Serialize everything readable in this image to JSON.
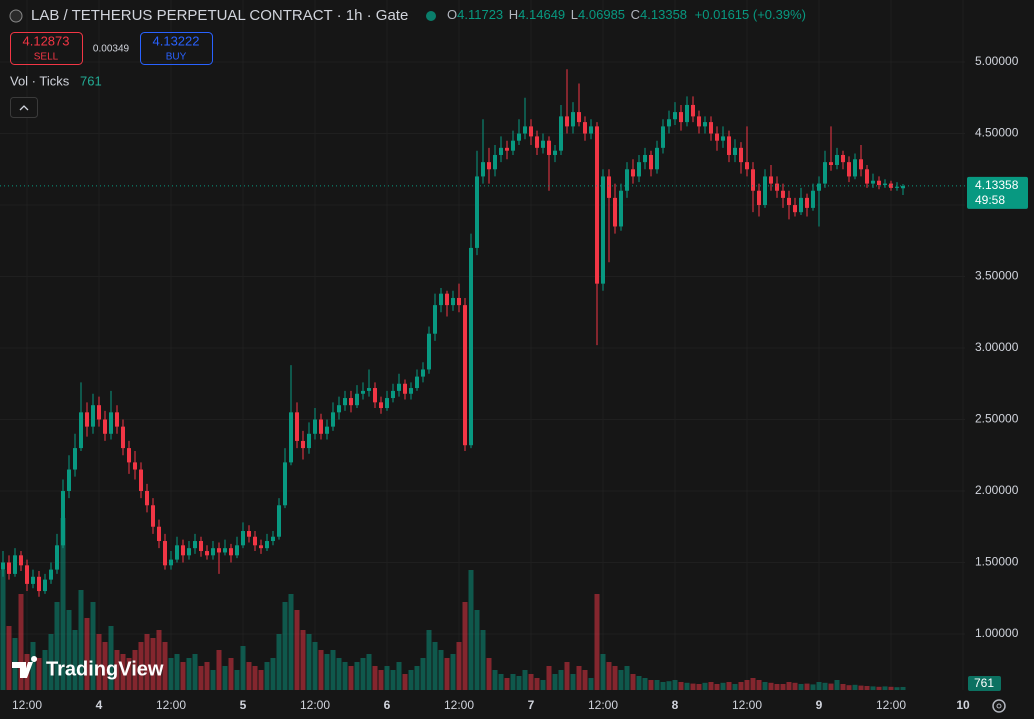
{
  "chart_data": {
    "type": "candlestick",
    "title": "LAB / TETHERUS PERPETUAL CONTRACT · 1h · Gate",
    "ohlc_labels": [
      "O",
      "H",
      "L",
      "C"
    ],
    "change": "+0.01615 (+0.39%)",
    "sell": {
      "price": 4.12873,
      "label": "SELL"
    },
    "spread": 0.00349,
    "buy": {
      "price": 4.13222,
      "label": "BUY"
    },
    "volume_label": "Vol · Ticks",
    "countdown": "49:58",
    "watermark": "TradingView",
    "up_color": "#089981",
    "down_color": "#f23645",
    "grid": true,
    "ylim": [
      0.608,
      5.434
    ],
    "yticks": [
      {
        "value": 1,
        "label": "1.00000"
      },
      {
        "value": 1.5,
        "label": "1.50000"
      },
      {
        "value": 2,
        "label": "2.00000"
      },
      {
        "value": 2.5,
        "label": "2.50000"
      },
      {
        "value": 3,
        "label": "3.00000"
      },
      {
        "value": 3.5,
        "label": "3.50000"
      },
      {
        "value": 4,
        "label": "4.00000"
      },
      {
        "value": 4.5,
        "label": "4.50000"
      },
      {
        "value": 5,
        "label": "5.00000"
      }
    ],
    "xticks": [
      "12:00",
      "4",
      "12:00",
      "5",
      "12:00",
      "6",
      "12:00",
      "7",
      "12:00",
      "8",
      "12:00",
      "9",
      "12:00",
      "10"
    ],
    "candles": [
      [
        1.45,
        1.58,
        1.4,
        1.5
      ],
      [
        1.5,
        1.55,
        1.38,
        1.42
      ],
      [
        1.42,
        1.6,
        1.4,
        1.55
      ],
      [
        1.55,
        1.58,
        1.44,
        1.48
      ],
      [
        1.48,
        1.52,
        1.3,
        1.35
      ],
      [
        1.35,
        1.45,
        1.32,
        1.4
      ],
      [
        1.4,
        1.44,
        1.26,
        1.3
      ],
      [
        1.3,
        1.42,
        1.28,
        1.38
      ],
      [
        1.38,
        1.5,
        1.35,
        1.45
      ],
      [
        1.45,
        1.7,
        1.42,
        1.62
      ],
      [
        1.62,
        2.08,
        1.6,
        2.0
      ],
      [
        2.0,
        2.25,
        1.95,
        2.15
      ],
      [
        2.15,
        2.4,
        2.1,
        2.3
      ],
      [
        2.3,
        2.76,
        2.28,
        2.55
      ],
      [
        2.55,
        2.62,
        2.38,
        2.45
      ],
      [
        2.45,
        2.68,
        2.4,
        2.6
      ],
      [
        2.6,
        2.66,
        2.45,
        2.5
      ],
      [
        2.5,
        2.56,
        2.35,
        2.4
      ],
      [
        2.4,
        2.7,
        2.36,
        2.55
      ],
      [
        2.55,
        2.6,
        2.4,
        2.45
      ],
      [
        2.45,
        2.5,
        2.25,
        2.3
      ],
      [
        2.3,
        2.35,
        2.12,
        2.2
      ],
      [
        2.2,
        2.28,
        2.08,
        2.15
      ],
      [
        2.15,
        2.2,
        1.95,
        2.0
      ],
      [
        2.0,
        2.05,
        1.85,
        1.9
      ],
      [
        1.9,
        1.95,
        1.7,
        1.75
      ],
      [
        1.75,
        1.8,
        1.6,
        1.65
      ],
      [
        1.65,
        1.7,
        1.45,
        1.48
      ],
      [
        1.48,
        1.58,
        1.45,
        1.52
      ],
      [
        1.52,
        1.68,
        1.5,
        1.62
      ],
      [
        1.62,
        1.66,
        1.5,
        1.55
      ],
      [
        1.55,
        1.65,
        1.52,
        1.6
      ],
      [
        1.6,
        1.7,
        1.56,
        1.65
      ],
      [
        1.65,
        1.68,
        1.54,
        1.58
      ],
      [
        1.58,
        1.62,
        1.52,
        1.55
      ],
      [
        1.55,
        1.65,
        1.52,
        1.6
      ],
      [
        1.6,
        1.64,
        1.42,
        1.57
      ],
      [
        1.57,
        1.66,
        1.55,
        1.6
      ],
      [
        1.6,
        1.63,
        1.5,
        1.55
      ],
      [
        1.55,
        1.68,
        1.53,
        1.62
      ],
      [
        1.62,
        1.78,
        1.6,
        1.72
      ],
      [
        1.72,
        1.76,
        1.64,
        1.68
      ],
      [
        1.68,
        1.72,
        1.58,
        1.62
      ],
      [
        1.62,
        1.66,
        1.56,
        1.6
      ],
      [
        1.6,
        1.7,
        1.58,
        1.65
      ],
      [
        1.65,
        1.72,
        1.62,
        1.68
      ],
      [
        1.68,
        1.95,
        1.66,
        1.9
      ],
      [
        1.9,
        2.3,
        1.88,
        2.2
      ],
      [
        2.2,
        2.88,
        2.18,
        2.55
      ],
      [
        2.55,
        2.62,
        2.3,
        2.35
      ],
      [
        2.35,
        2.42,
        2.22,
        2.3
      ],
      [
        2.3,
        2.48,
        2.26,
        2.4
      ],
      [
        2.4,
        2.58,
        2.36,
        2.5
      ],
      [
        2.5,
        2.54,
        2.36,
        2.4
      ],
      [
        2.4,
        2.5,
        2.36,
        2.45
      ],
      [
        2.45,
        2.62,
        2.42,
        2.55
      ],
      [
        2.55,
        2.66,
        2.5,
        2.6
      ],
      [
        2.6,
        2.7,
        2.56,
        2.65
      ],
      [
        2.65,
        2.7,
        2.55,
        2.6
      ],
      [
        2.6,
        2.74,
        2.58,
        2.68
      ],
      [
        2.68,
        2.76,
        2.64,
        2.7
      ],
      [
        2.7,
        2.85,
        2.66,
        2.72
      ],
      [
        2.72,
        2.76,
        2.58,
        2.62
      ],
      [
        2.62,
        2.66,
        2.54,
        2.58
      ],
      [
        2.58,
        2.7,
        2.56,
        2.65
      ],
      [
        2.65,
        2.75,
        2.62,
        2.7
      ],
      [
        2.7,
        2.82,
        2.66,
        2.75
      ],
      [
        2.75,
        2.78,
        2.64,
        2.68
      ],
      [
        2.68,
        2.76,
        2.64,
        2.72
      ],
      [
        2.72,
        2.85,
        2.7,
        2.8
      ],
      [
        2.8,
        2.9,
        2.76,
        2.85
      ],
      [
        2.85,
        3.15,
        2.82,
        3.1
      ],
      [
        3.1,
        3.38,
        3.05,
        3.3
      ],
      [
        3.3,
        3.42,
        3.25,
        3.38
      ],
      [
        3.38,
        3.4,
        3.22,
        3.3
      ],
      [
        3.3,
        3.4,
        3.26,
        3.35
      ],
      [
        3.35,
        3.45,
        3.25,
        3.3
      ],
      [
        3.3,
        3.35,
        2.28,
        2.32
      ],
      [
        2.32,
        3.8,
        2.3,
        3.7
      ],
      [
        3.7,
        4.38,
        3.65,
        4.2
      ],
      [
        4.2,
        4.6,
        4.15,
        4.3
      ],
      [
        4.3,
        4.4,
        4.15,
        4.25
      ],
      [
        4.25,
        4.42,
        4.2,
        4.35
      ],
      [
        4.35,
        4.48,
        4.3,
        4.4
      ],
      [
        4.4,
        4.45,
        4.32,
        4.38
      ],
      [
        4.38,
        4.52,
        4.35,
        4.45
      ],
      [
        4.45,
        4.6,
        4.42,
        4.5
      ],
      [
        4.5,
        4.75,
        4.46,
        4.55
      ],
      [
        4.55,
        4.6,
        4.42,
        4.48
      ],
      [
        4.48,
        4.52,
        4.35,
        4.4
      ],
      [
        4.4,
        4.5,
        4.36,
        4.45
      ],
      [
        4.45,
        4.48,
        4.1,
        4.35
      ],
      [
        4.35,
        4.42,
        4.3,
        4.38
      ],
      [
        4.38,
        4.7,
        4.35,
        4.62
      ],
      [
        4.62,
        4.95,
        4.5,
        4.55
      ],
      [
        4.55,
        4.72,
        4.5,
        4.65
      ],
      [
        4.65,
        4.85,
        4.55,
        4.58
      ],
      [
        4.58,
        4.62,
        4.45,
        4.5
      ],
      [
        4.5,
        4.6,
        4.46,
        4.55
      ],
      [
        4.55,
        4.58,
        3.02,
        3.45
      ],
      [
        3.45,
        4.25,
        3.4,
        4.2
      ],
      [
        4.2,
        4.25,
        3.6,
        4.05
      ],
      [
        4.05,
        4.15,
        3.8,
        3.85
      ],
      [
        3.85,
        4.15,
        3.82,
        4.1
      ],
      [
        4.1,
        4.3,
        4.05,
        4.25
      ],
      [
        4.25,
        4.32,
        4.15,
        4.2
      ],
      [
        4.2,
        4.35,
        4.16,
        4.3
      ],
      [
        4.3,
        4.4,
        4.25,
        4.35
      ],
      [
        4.35,
        4.38,
        4.2,
        4.25
      ],
      [
        4.25,
        4.45,
        4.22,
        4.4
      ],
      [
        4.4,
        4.6,
        4.36,
        4.55
      ],
      [
        4.55,
        4.66,
        4.5,
        4.6
      ],
      [
        4.6,
        4.72,
        4.56,
        4.65
      ],
      [
        4.65,
        4.7,
        4.52,
        4.58
      ],
      [
        4.58,
        4.76,
        4.55,
        4.7
      ],
      [
        4.7,
        4.76,
        4.58,
        4.62
      ],
      [
        4.62,
        4.66,
        4.5,
        4.55
      ],
      [
        4.55,
        4.62,
        4.5,
        4.58
      ],
      [
        4.58,
        4.62,
        4.45,
        4.5
      ],
      [
        4.5,
        4.55,
        4.38,
        4.45
      ],
      [
        4.45,
        4.55,
        4.4,
        4.48
      ],
      [
        4.48,
        4.52,
        4.3,
        4.35
      ],
      [
        4.35,
        4.46,
        4.3,
        4.4
      ],
      [
        4.4,
        4.44,
        4.22,
        4.3
      ],
      [
        4.3,
        4.55,
        4.2,
        4.25
      ],
      [
        4.25,
        4.3,
        3.95,
        4.1
      ],
      [
        4.1,
        4.15,
        3.92,
        4.0
      ],
      [
        4.0,
        4.25,
        3.98,
        4.2
      ],
      [
        4.2,
        4.28,
        4.1,
        4.15
      ],
      [
        4.15,
        4.2,
        4.05,
        4.1
      ],
      [
        4.1,
        4.15,
        3.98,
        4.05
      ],
      [
        4.05,
        4.1,
        3.9,
        4.0
      ],
      [
        4.0,
        4.05,
        3.92,
        3.95
      ],
      [
        3.95,
        4.12,
        3.93,
        4.05
      ],
      [
        4.05,
        4.08,
        3.92,
        3.98
      ],
      [
        3.98,
        4.15,
        3.96,
        4.1
      ],
      [
        4.1,
        4.2,
        3.85,
        4.15
      ],
      [
        4.15,
        4.38,
        4.12,
        4.3
      ],
      [
        4.3,
        4.55,
        4.24,
        4.28
      ],
      [
        4.28,
        4.4,
        4.25,
        4.35
      ],
      [
        4.35,
        4.38,
        4.25,
        4.3
      ],
      [
        4.3,
        4.34,
        4.16,
        4.2
      ],
      [
        4.2,
        4.36,
        4.18,
        4.32
      ],
      [
        4.32,
        4.42,
        4.2,
        4.25
      ],
      [
        4.25,
        4.28,
        4.12,
        4.15
      ],
      [
        4.15,
        4.22,
        4.12,
        4.17
      ],
      [
        4.17,
        4.2,
        4.11,
        4.14
      ],
      [
        4.14,
        4.18,
        4.12,
        4.15
      ],
      [
        4.15,
        4.17,
        4.1,
        4.12
      ],
      [
        4.12,
        4.16,
        4.1,
        4.128
      ],
      [
        4.11723,
        4.14649,
        4.06985,
        4.13358
      ]
    ],
    "volume": [
      30000,
      16000,
      13000,
      24000,
      9000,
      12000,
      8000,
      10000,
      14000,
      22000,
      43000,
      20000,
      15000,
      25000,
      18000,
      22000,
      14000,
      12000,
      16000,
      10000,
      9000,
      8000,
      10000,
      12000,
      14000,
      13000,
      15000,
      12000,
      8000,
      9000,
      7000,
      8000,
      9000,
      6000,
      7000,
      5000,
      10000,
      6000,
      8000,
      5000,
      11000,
      7000,
      6000,
      5000,
      7000,
      8000,
      14000,
      22000,
      24000,
      20000,
      15000,
      14000,
      12000,
      10000,
      9000,
      10000,
      8000,
      7000,
      6000,
      7000,
      8000,
      9000,
      6000,
      5000,
      6000,
      5000,
      7000,
      4000,
      5000,
      6000,
      8000,
      15000,
      12000,
      10000,
      8000,
      9000,
      12000,
      22000,
      30000,
      20000,
      15000,
      8000,
      5000,
      4000,
      3000,
      4000,
      3500,
      5000,
      4000,
      3000,
      2500,
      6000,
      4000,
      5000,
      7000,
      4000,
      6000,
      5000,
      3000,
      24000,
      9000,
      7000,
      6000,
      5000,
      6000,
      4000,
      3500,
      3000,
      2500,
      2500,
      2000,
      2200,
      2500,
      2000,
      1800,
      1600,
      1500,
      1800,
      2000,
      1500,
      1800,
      2000,
      1500,
      2000,
      2500,
      3000,
      2500,
      2000,
      1800,
      1500,
      1500,
      2000,
      1800,
      1500,
      1600,
      1400,
      2000,
      1800,
      1600,
      2500,
      1500,
      1200,
      1300,
      1100,
      1000,
      900,
      800,
      900,
      800,
      700,
      761
    ]
  }
}
